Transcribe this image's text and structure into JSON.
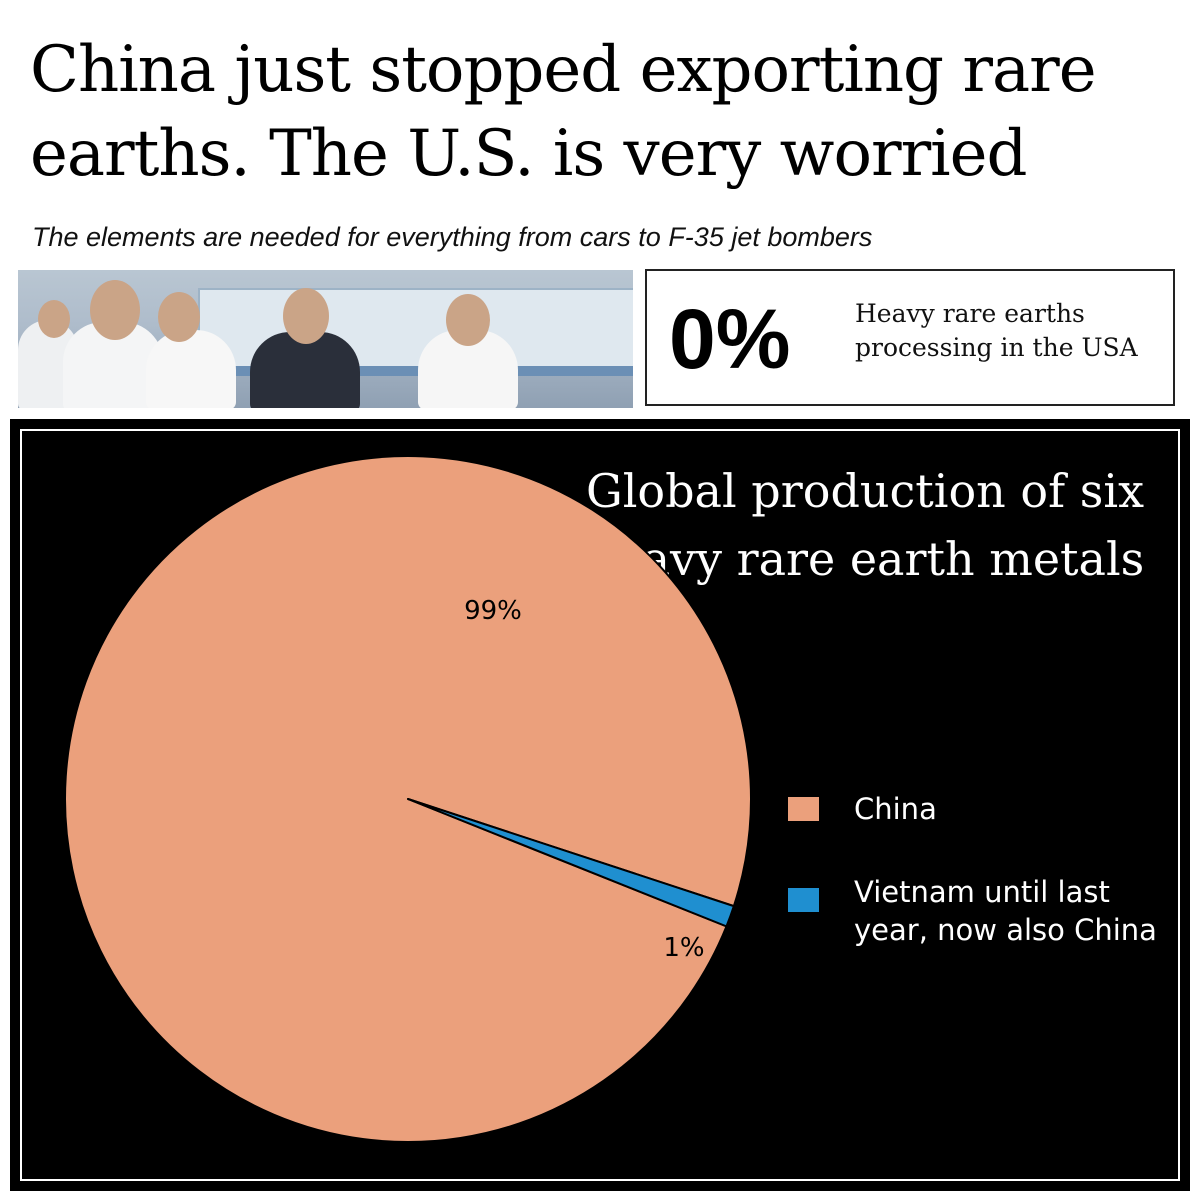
{
  "header": {
    "headline": "China just stopped exporting rare earths. The U.S. is very worried",
    "subhead": "The elements are needed for everything from cars to F-35 jet bombers"
  },
  "stat": {
    "value": "0%",
    "label": "Heavy rare earths processing in the USA"
  },
  "chart_data": {
    "type": "pie",
    "title": "Global production of six heavy rare earth metals",
    "categories": [
      "China",
      "Vietnam until last year, now also China"
    ],
    "values": [
      99,
      1
    ],
    "data_labels": [
      "99%",
      "1%"
    ],
    "colors": [
      "#eba07c",
      "#1f8fd0"
    ],
    "legend_position": "right"
  }
}
